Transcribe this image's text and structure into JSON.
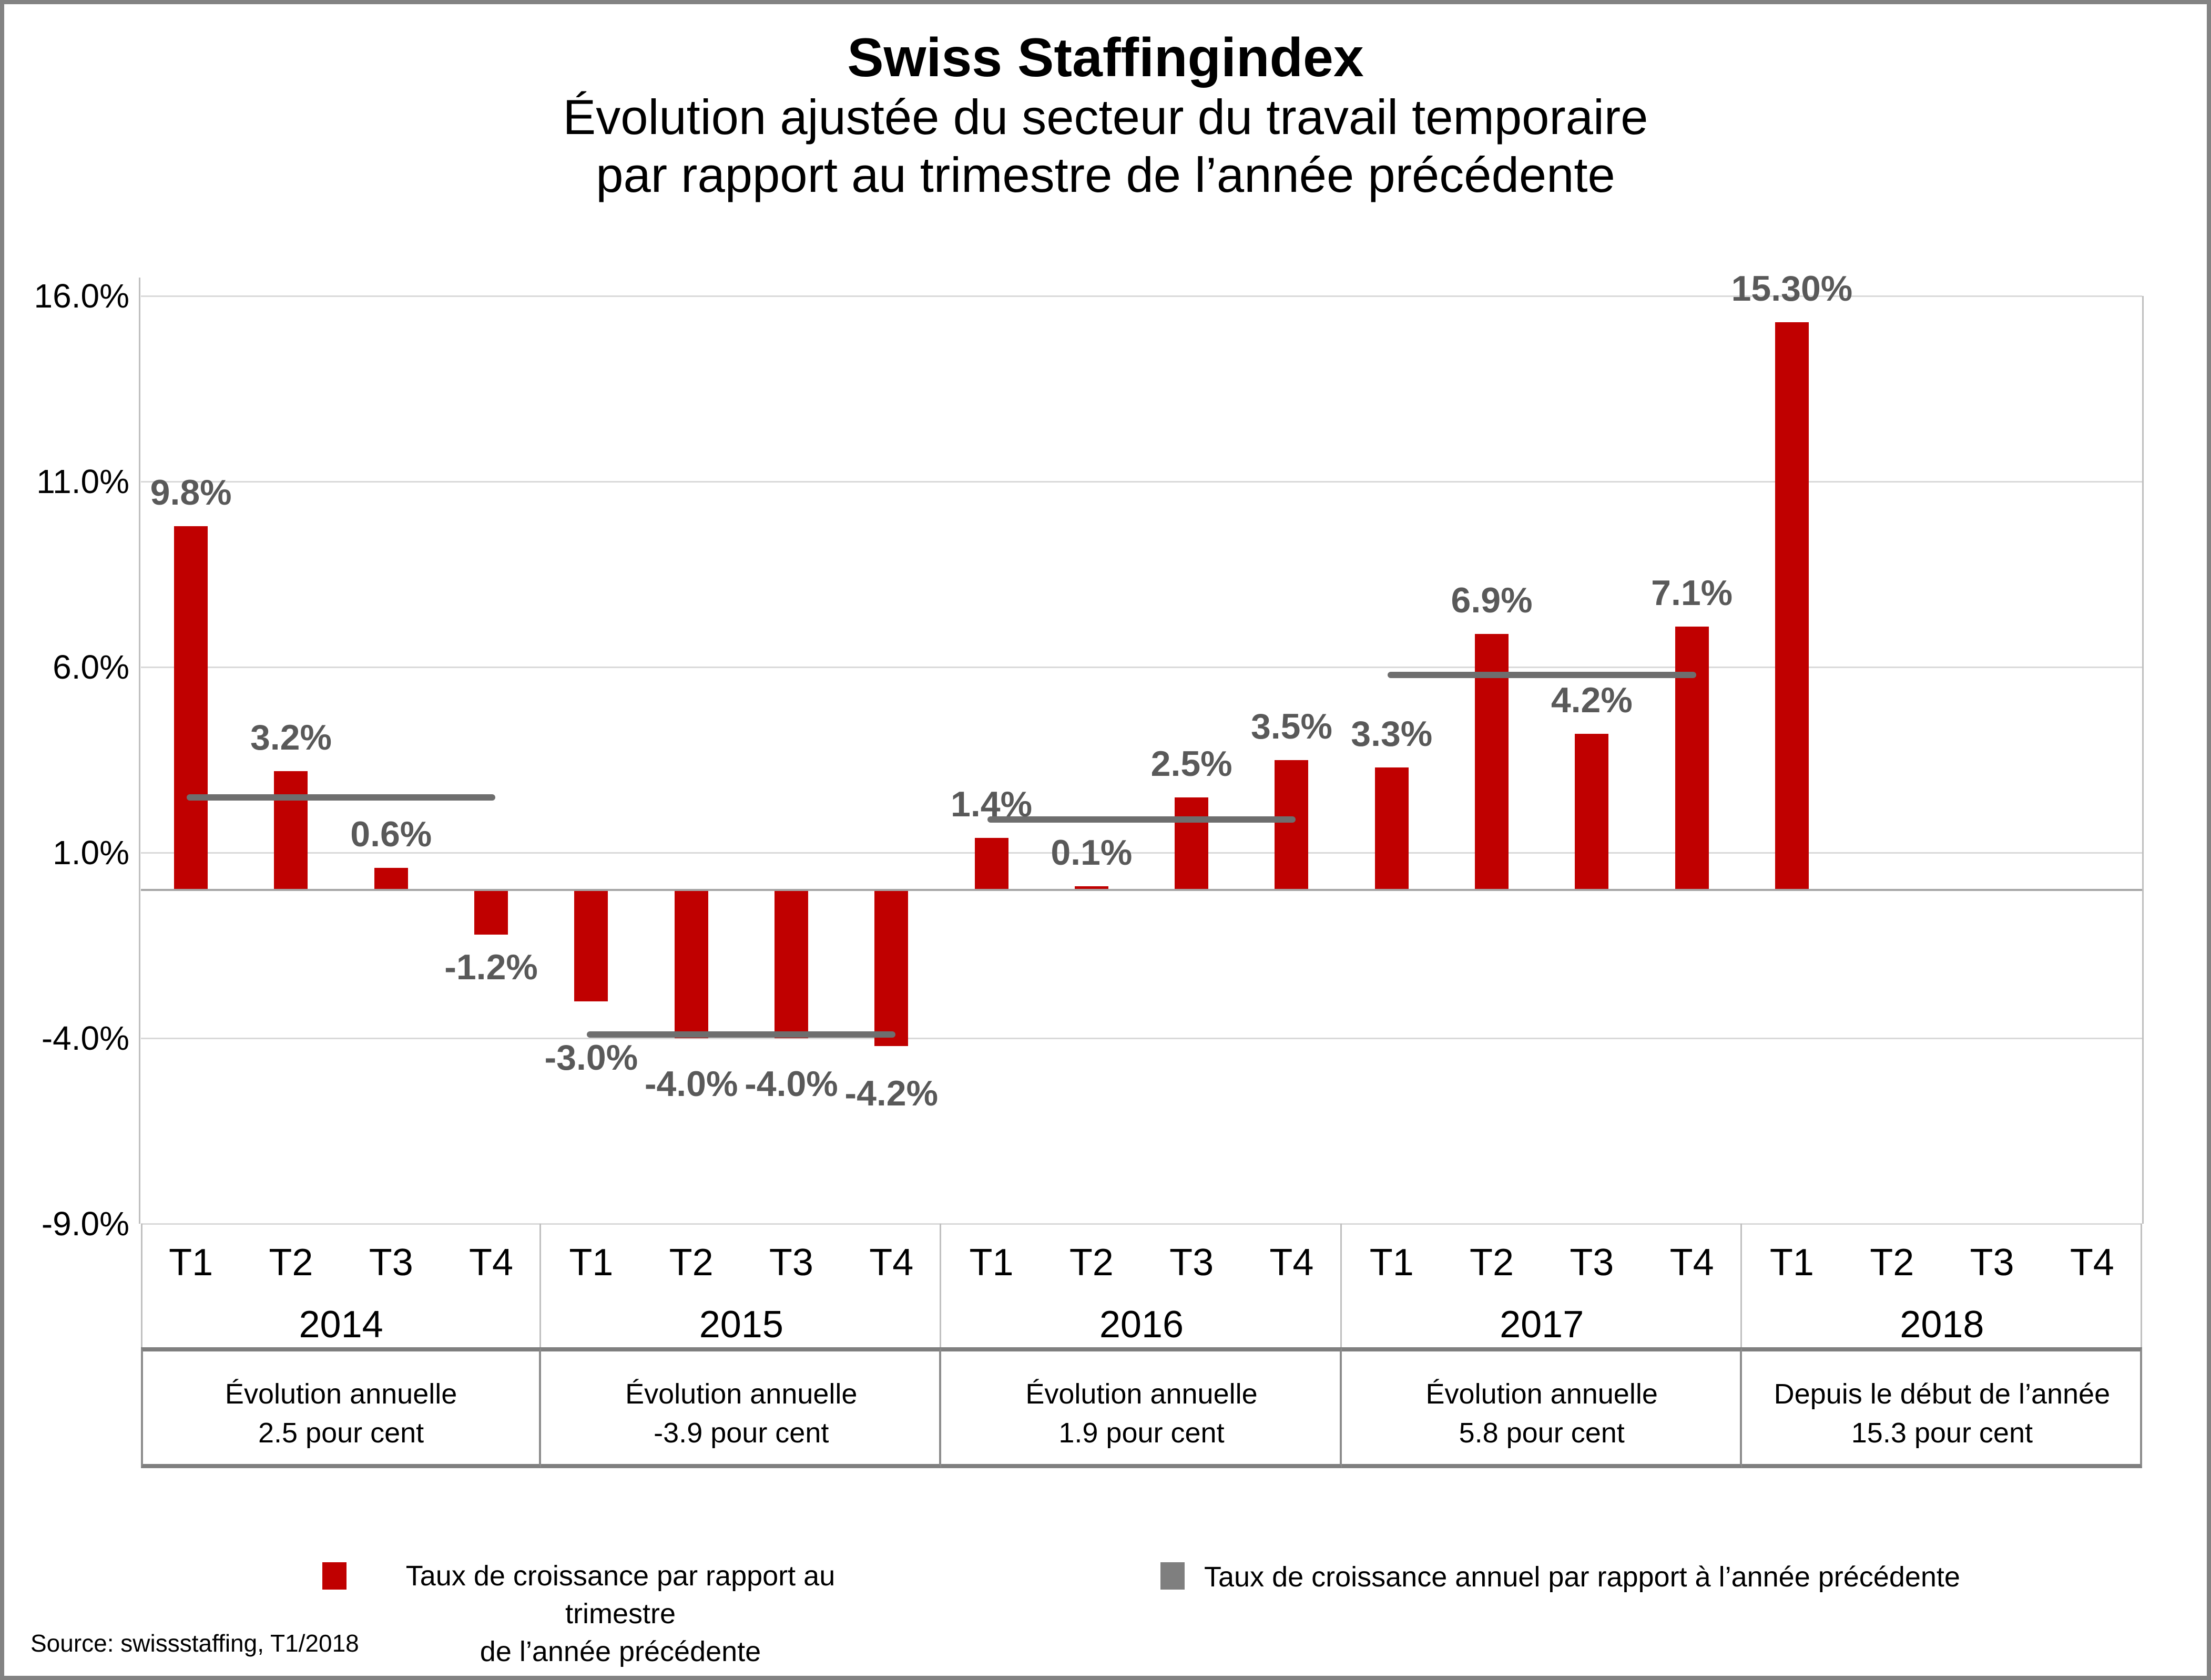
{
  "page": {
    "background": "#ffffff",
    "frame_color": "#838383"
  },
  "chart_data": {
    "type": "bar",
    "title": "Swiss Staffingindex",
    "subtitle_line1": "Évolution ajustée du secteur du travail temporaire",
    "subtitle_line2": "par rapport au trimestre de l’année précédente",
    "ylim": [
      -9,
      16.5
    ],
    "grid": true,
    "y_ticks": [
      {
        "value": 16,
        "label": "16.0%"
      },
      {
        "value": 11,
        "label": "11.0%"
      },
      {
        "value": 6,
        "label": "6.0%"
      },
      {
        "value": 1,
        "label": "1.0%"
      },
      {
        "value": -4,
        "label": "-4.0%"
      },
      {
        "value": -9,
        "label": "-9.0%"
      }
    ],
    "bar_color": "#c00000",
    "annual_line_color": "#6e6e6e",
    "label_color": "#595959",
    "years": [
      {
        "year": "2014",
        "quarters": [
          "T1",
          "T2",
          "T3",
          "T4"
        ],
        "values": [
          9.8,
          3.2,
          0.6,
          -1.2
        ],
        "value_labels": [
          "9.8%",
          "3.2%",
          "0.6%",
          "-1.2%"
        ],
        "annual_value": 2.5,
        "footer_line1": "Évolution annuelle",
        "footer_line2": "2.5 pour cent"
      },
      {
        "year": "2015",
        "quarters": [
          "T1",
          "T2",
          "T3",
          "T4"
        ],
        "values": [
          -3.0,
          -4.0,
          -4.0,
          -4.2
        ],
        "value_labels": [
          "-3.0%",
          "-4.0%",
          "-4.0%",
          "-4.2%"
        ],
        "annual_value": -3.9,
        "footer_line1": "Évolution annuelle",
        "footer_line2": "-3.9 pour cent"
      },
      {
        "year": "2016",
        "quarters": [
          "T1",
          "T2",
          "T3",
          "T4"
        ],
        "values": [
          1.4,
          0.1,
          2.5,
          3.5
        ],
        "value_labels": [
          "1.4%",
          "0.1%",
          "2.5%",
          "3.5%"
        ],
        "annual_value": 1.9,
        "footer_line1": "Évolution annuelle",
        "footer_line2": "1.9 pour cent"
      },
      {
        "year": "2017",
        "quarters": [
          "T1",
          "T2",
          "T3",
          "T4"
        ],
        "values": [
          3.3,
          6.9,
          4.2,
          7.1
        ],
        "value_labels": [
          "3.3%",
          "6.9%",
          "4.2%",
          "7.1%"
        ],
        "annual_value": 5.8,
        "footer_line1": "Évolution annuelle",
        "footer_line2": "5.8 pour cent"
      },
      {
        "year": "2018",
        "quarters": [
          "T1",
          "T2",
          "T3",
          "T4"
        ],
        "values": [
          15.3,
          null,
          null,
          null
        ],
        "value_labels": [
          "15.30%",
          null,
          null,
          null
        ],
        "annual_value": null,
        "footer_line1": "Depuis le début de l’année",
        "footer_line2": "15.3 pour cent"
      }
    ],
    "legend": [
      {
        "color": "#c00000",
        "label_line1": "Taux de croissance par rapport au trimestre",
        "label_line2": "de l’année précédente"
      },
      {
        "color": "#7f7f7f",
        "label_line1": "Taux de croissance annuel par rapport à l’année précédente",
        "label_line2": ""
      }
    ],
    "source": "Source: swissstaffing, T1/2018"
  }
}
